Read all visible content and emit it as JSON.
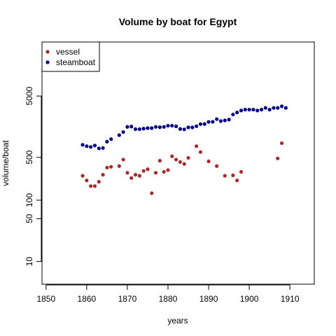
{
  "chart_data": {
    "type": "scatter",
    "title": "Volume by boat for Egypt",
    "xlabel": "years",
    "ylabel": "volume/boat",
    "x_ticks": [
      1850,
      1860,
      1870,
      1880,
      1890,
      1900,
      1910
    ],
    "y_ticks": [
      10,
      50,
      100,
      500,
      5000
    ],
    "xlim": [
      1849,
      1916
    ],
    "ylim_log10": [
      0.63,
      4.58
    ],
    "y_scale": "log",
    "legend_position": "top-left",
    "series": [
      {
        "name": "vessel",
        "color": "#a52a2a",
        "points": [
          [
            1859,
            250
          ],
          [
            1860,
            210
          ],
          [
            1861,
            170
          ],
          [
            1862,
            170
          ],
          [
            1863,
            200
          ],
          [
            1864,
            260
          ],
          [
            1865,
            340
          ],
          [
            1866,
            350
          ],
          [
            1868,
            360
          ],
          [
            1869,
            460
          ],
          [
            1870,
            280
          ],
          [
            1871,
            230
          ],
          [
            1872,
            260
          ],
          [
            1873,
            250
          ],
          [
            1874,
            300
          ],
          [
            1875,
            320
          ],
          [
            1876,
            130
          ],
          [
            1877,
            280
          ],
          [
            1878,
            440
          ],
          [
            1879,
            290
          ],
          [
            1880,
            310
          ],
          [
            1881,
            520
          ],
          [
            1882,
            460
          ],
          [
            1883,
            420
          ],
          [
            1884,
            390
          ],
          [
            1885,
            490
          ],
          [
            1887,
            760
          ],
          [
            1888,
            610
          ],
          [
            1890,
            430
          ],
          [
            1892,
            360
          ],
          [
            1894,
            250
          ],
          [
            1896,
            255
          ],
          [
            1897,
            210
          ],
          [
            1898,
            290
          ],
          [
            1907,
            480
          ],
          [
            1908,
            850
          ]
        ]
      },
      {
        "name": "steamboat",
        "color": "#000080",
        "points": [
          [
            1859,
            800
          ],
          [
            1860,
            760
          ],
          [
            1861,
            740
          ],
          [
            1862,
            780
          ],
          [
            1863,
            700
          ],
          [
            1864,
            710
          ],
          [
            1865,
            900
          ],
          [
            1866,
            990
          ],
          [
            1868,
            1150
          ],
          [
            1869,
            1290
          ],
          [
            1870,
            1570
          ],
          [
            1871,
            1590
          ],
          [
            1872,
            1440
          ],
          [
            1873,
            1440
          ],
          [
            1874,
            1470
          ],
          [
            1875,
            1500
          ],
          [
            1876,
            1500
          ],
          [
            1877,
            1570
          ],
          [
            1878,
            1550
          ],
          [
            1879,
            1570
          ],
          [
            1880,
            1640
          ],
          [
            1881,
            1640
          ],
          [
            1882,
            1600
          ],
          [
            1883,
            1450
          ],
          [
            1884,
            1430
          ],
          [
            1885,
            1540
          ],
          [
            1886,
            1540
          ],
          [
            1887,
            1610
          ],
          [
            1888,
            1740
          ],
          [
            1889,
            1750
          ],
          [
            1890,
            1890
          ],
          [
            1891,
            1900
          ],
          [
            1892,
            2100
          ],
          [
            1893,
            1950
          ],
          [
            1894,
            2000
          ],
          [
            1895,
            2060
          ],
          [
            1896,
            2500
          ],
          [
            1897,
            2700
          ],
          [
            1898,
            2900
          ],
          [
            1899,
            3000
          ],
          [
            1900,
            3000
          ],
          [
            1901,
            3000
          ],
          [
            1902,
            2900
          ],
          [
            1903,
            3000
          ],
          [
            1904,
            3200
          ],
          [
            1905,
            3000
          ],
          [
            1906,
            3200
          ],
          [
            1907,
            3200
          ],
          [
            1908,
            3400
          ],
          [
            1909,
            3200
          ]
        ]
      }
    ]
  }
}
